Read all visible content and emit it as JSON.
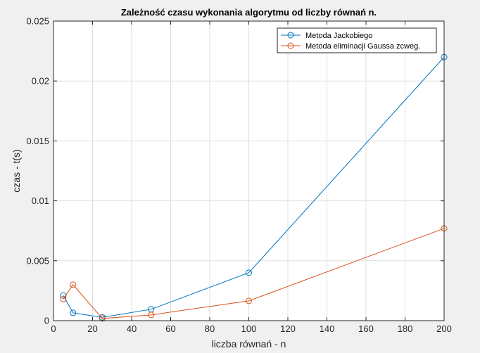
{
  "chart_data": {
    "type": "line",
    "title": "Zależność czasu wykonania algorytmu od liczby równań n.",
    "xlabel": "liczba równań - n",
    "ylabel": "czas - t(s)",
    "xlim": [
      0,
      200
    ],
    "ylim": [
      0,
      0.025
    ],
    "xticks": [
      0,
      20,
      40,
      60,
      80,
      100,
      120,
      140,
      160,
      180,
      200
    ],
    "yticks": [
      0,
      0.005,
      0.01,
      0.015,
      0.02,
      0.025
    ],
    "xtick_labels": [
      "0",
      "20",
      "40",
      "60",
      "80",
      "100",
      "120",
      "140",
      "160",
      "180",
      "200"
    ],
    "ytick_labels": [
      "0",
      "0.005",
      "0.01",
      "0.015",
      "0.02",
      "0.025"
    ],
    "grid": true,
    "legend_position": "top-right",
    "series": [
      {
        "name": "Metoda Jackobiego",
        "color": "#0072bd",
        "marker": "circle",
        "x": [
          5,
          10,
          25,
          50,
          100,
          200
        ],
        "y": [
          0.0021,
          0.00065,
          0.00028,
          0.00095,
          0.004,
          0.022
        ]
      },
      {
        "name": "Metoda eliminacji Gaussa zcweg.",
        "color": "#d95319",
        "marker": "circle",
        "x": [
          5,
          10,
          25,
          50,
          100,
          200
        ],
        "y": [
          0.0018,
          0.003,
          0.00018,
          0.00048,
          0.00165,
          0.0077
        ]
      }
    ]
  }
}
